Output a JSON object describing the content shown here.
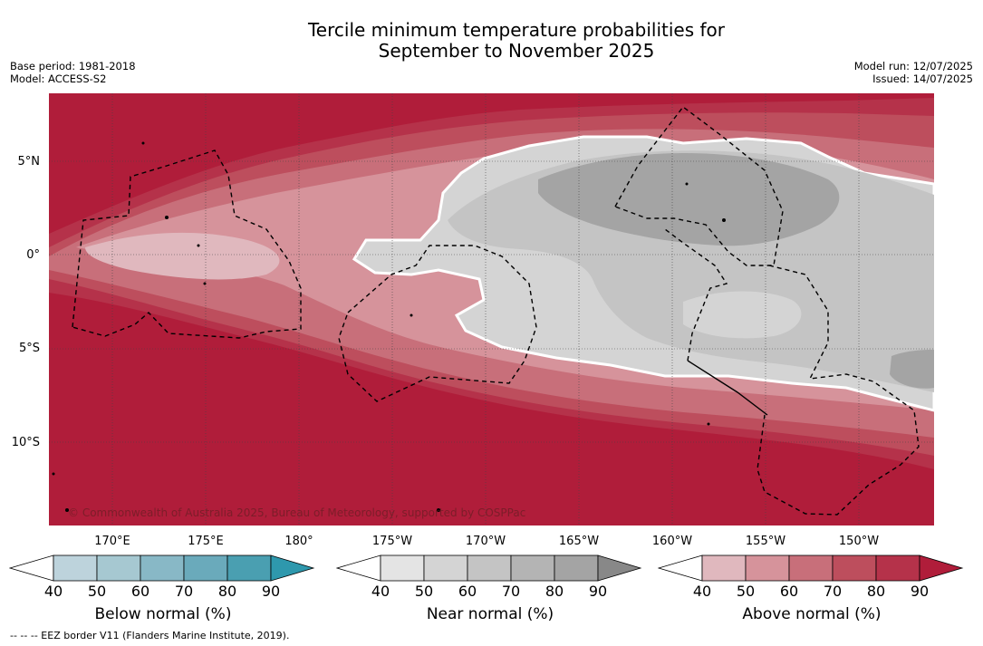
{
  "title_line1": "Tercile minimum temperature probabilities for",
  "title_line2": "September to November 2025",
  "meta_left": [
    "Base period: 1981-2018",
    "Model: ACCESS-S2"
  ],
  "meta_right": [
    "Model run: 12/07/2025",
    "Issued: 14/07/2025"
  ],
  "map": {
    "lat_ticks": [
      "5°N",
      "0°",
      "5°S",
      "10°S"
    ],
    "lon_ticks_top_row": [
      "170°E",
      "175°E",
      "180°",
      "175°W",
      "170°W",
      "165°W",
      "160°W",
      "155°W",
      "150°W"
    ],
    "copyright": "© Commonwealth of Australia 2025, Bureau of Meteorology, supported by COSPPac"
  },
  "colorbars": [
    {
      "label": "Below normal (%)",
      "ticks": [
        "40",
        "50",
        "60",
        "70",
        "80",
        "90"
      ],
      "colors": [
        "#ffffff",
        "#bdd3dc",
        "#a6c8d1",
        "#88b8c6",
        "#6aaabb",
        "#4a9fb1",
        "#2e98ad"
      ]
    },
    {
      "label": "Near normal (%)",
      "ticks": [
        "40",
        "50",
        "60",
        "70",
        "80",
        "90"
      ],
      "colors": [
        "#ffffff",
        "#e4e4e4",
        "#d4d4d4",
        "#c4c4c4",
        "#b4b4b4",
        "#a4a4a4",
        "#888888"
      ]
    },
    {
      "label": "Above normal (%)",
      "ticks": [
        "40",
        "50",
        "60",
        "70",
        "80",
        "90"
      ],
      "colors": [
        "#ffffff",
        "#e0b8be",
        "#d6939b",
        "#c86f7a",
        "#bd4e5d",
        "#b5324a",
        "#b01d3a"
      ]
    }
  ],
  "footnote": "-- -- -- EEZ border V11 (Flanders Marine Institute, 2019)."
}
